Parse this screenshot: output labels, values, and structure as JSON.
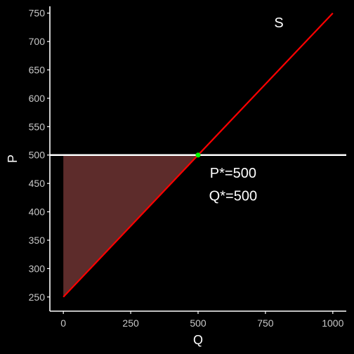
{
  "chart_data": {
    "type": "line",
    "title": "",
    "xlabel": "Q",
    "ylabel": "P",
    "xlim": [
      -50,
      1050
    ],
    "ylim": [
      225,
      762
    ],
    "x_ticks": [
      0,
      250,
      500,
      750,
      1000
    ],
    "y_ticks": [
      250,
      300,
      350,
      400,
      450,
      500,
      550,
      600,
      650,
      700,
      750
    ],
    "grid": false,
    "series": [
      {
        "name": "S",
        "color": "#ff0000",
        "x": [
          0,
          1000
        ],
        "y": [
          250,
          750
        ]
      }
    ],
    "price_line": {
      "y": 500,
      "color": "#ffffff"
    },
    "shaded_area": {
      "x": [
        0,
        0,
        500
      ],
      "y": [
        250,
        500,
        500
      ],
      "color": "#9b4a47",
      "opacity": 0.6
    },
    "equilibrium_point": {
      "x": 500,
      "y": 500,
      "color": "#00ff00"
    },
    "annotations": {
      "supply_label": {
        "text": "S",
        "x": 800,
        "y": 725
      },
      "p_star": {
        "text": "P*=500",
        "x": 630,
        "y": 460
      },
      "q_star": {
        "text": "Q*=500",
        "x": 630,
        "y": 420
      }
    },
    "colors": {
      "background": "#000000",
      "axis": "#ffffff",
      "tick_label": "#c8c8c8",
      "text": "#ffffff"
    }
  }
}
